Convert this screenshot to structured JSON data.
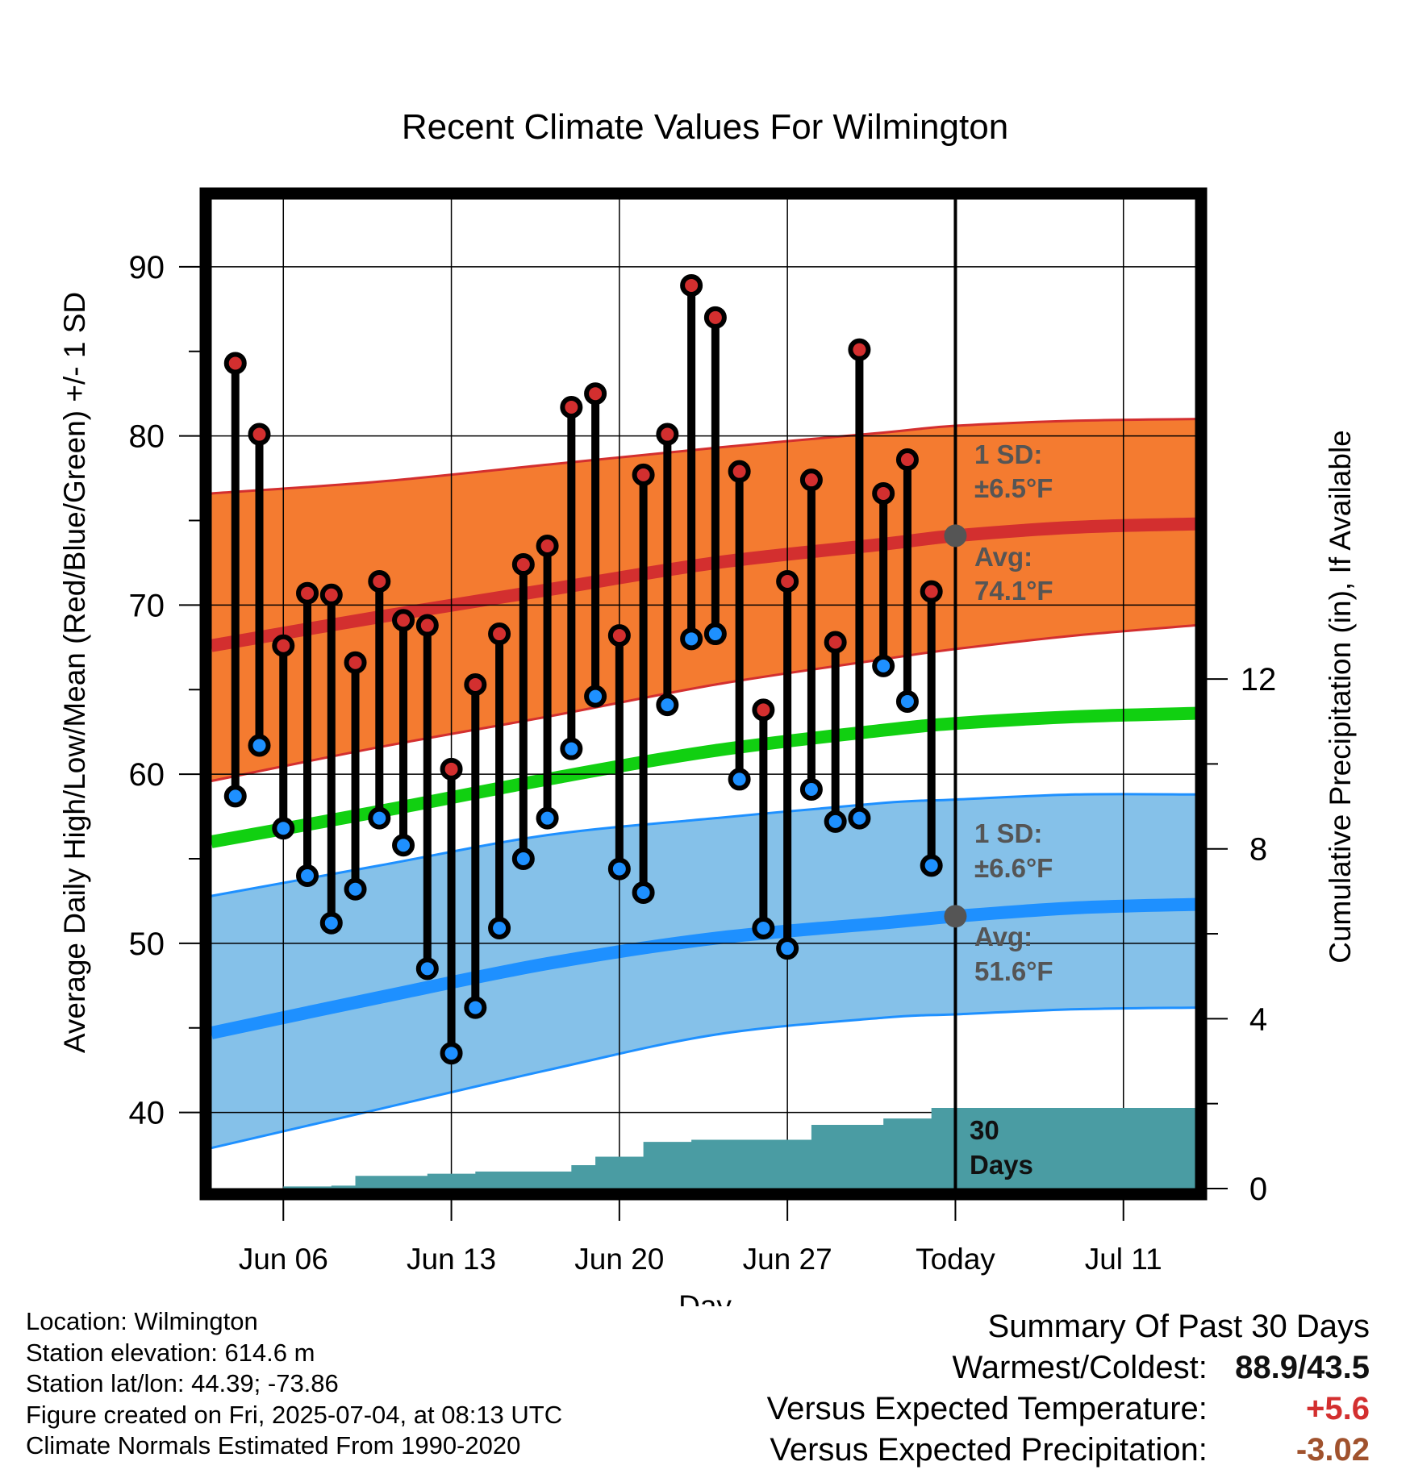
{
  "title": "Recent Climate Values For Wilmington",
  "y_left_label": "Average Daily High/Low/Mean (Red/Blue/Green) +/- 1 SD",
  "y_right_label": "Cumulative Precipitation (in), If Available",
  "x_label": "Day",
  "annotations": {
    "high_sd_line1": "1 SD:",
    "high_sd_line2": "±6.5°F",
    "high_avg_line1": "Avg:",
    "high_avg_line2": "74.1°F",
    "low_sd_line1": "1 SD:",
    "low_sd_line2": "±6.6°F",
    "low_avg_line1": "Avg:",
    "low_avg_line2": "51.6°F",
    "precip_line1": "30",
    "precip_line2": "Days"
  },
  "footer": {
    "location": "Location: Wilmington",
    "elevation": "Station elevation: 614.6 m",
    "latlon": "Station lat/lon: 44.39; -73.86",
    "created": "Figure created on Fri, 2025-07-04, at 08:13 UTC",
    "normals": "Climate Normals Estimated From 1990-2020"
  },
  "summary": {
    "heading": "Summary Of Past 30 Days",
    "warm_cold_label": "Warmest/Coldest:",
    "warm_cold_value": "88.9/43.5",
    "temp_label": "Versus Expected Temperature:",
    "temp_value": "+5.6",
    "precip_label": "Versus Expected Precipitation:",
    "precip_value": "-3.02"
  },
  "colors": {
    "high_band": "#f47b30",
    "high_line": "#d32f2f",
    "low_band": "#85c1e9",
    "low_line": "#1e90ff",
    "mean_line": "#11d011",
    "precip_fill": "#4a9ca3",
    "high_dot": "#d32f2f",
    "low_dot": "#1e90ff",
    "annotation_text": "#555555",
    "temp_value": "#d32f2f",
    "precip_value": "#a0522d"
  },
  "chart_data": {
    "type": "line",
    "title": "Recent Climate Values For Wilmington",
    "xlabel": "Day",
    "ylabel": "Average Daily High/Low/Mean (Red/Blue/Green) +/- 1 SD",
    "y2label": "Cumulative Precipitation (in), If Available",
    "xlim": [
      "2025-06-03",
      "2025-07-14"
    ],
    "ylim": [
      35.5,
      94
    ],
    "y2lim": [
      0,
      23.3
    ],
    "grid": true,
    "x_ticks": [
      {
        "date": "2025-06-06",
        "label": "Jun 06"
      },
      {
        "date": "2025-06-13",
        "label": "Jun 13"
      },
      {
        "date": "2025-06-20",
        "label": "Jun 20"
      },
      {
        "date": "2025-06-27",
        "label": "Jun 27"
      },
      {
        "date": "2025-07-04",
        "label": "Today"
      },
      {
        "date": "2025-07-11",
        "label": "Jul 11"
      }
    ],
    "y_ticks": [
      40,
      50,
      60,
      70,
      80,
      90
    ],
    "y2_ticks": [
      0,
      4,
      8,
      12
    ],
    "today": "2025-07-04",
    "daily": {
      "dates": [
        "2025-06-04",
        "2025-06-05",
        "2025-06-06",
        "2025-06-07",
        "2025-06-08",
        "2025-06-09",
        "2025-06-10",
        "2025-06-11",
        "2025-06-12",
        "2025-06-13",
        "2025-06-14",
        "2025-06-15",
        "2025-06-16",
        "2025-06-17",
        "2025-06-18",
        "2025-06-19",
        "2025-06-20",
        "2025-06-21",
        "2025-06-22",
        "2025-06-23",
        "2025-06-24",
        "2025-06-25",
        "2025-06-26",
        "2025-06-27",
        "2025-06-28",
        "2025-06-29",
        "2025-06-30",
        "2025-07-01",
        "2025-07-02",
        "2025-07-03"
      ],
      "highs": [
        84.3,
        80.1,
        67.6,
        70.7,
        70.6,
        66.6,
        71.4,
        69.1,
        68.8,
        60.3,
        65.3,
        68.3,
        72.4,
        73.5,
        81.7,
        82.5,
        68.2,
        77.7,
        80.1,
        88.9,
        87.0,
        77.9,
        63.8,
        71.4,
        77.4,
        67.8,
        85.1,
        76.6,
        78.6,
        70.8
      ],
      "lows": [
        58.7,
        61.7,
        56.8,
        54.0,
        51.2,
        53.2,
        57.4,
        55.8,
        48.5,
        43.5,
        46.2,
        50.9,
        55.0,
        57.4,
        61.5,
        64.6,
        54.4,
        53.0,
        64.1,
        68.0,
        68.3,
        59.7,
        50.9,
        49.7,
        59.1,
        57.2,
        57.4,
        66.4,
        64.3,
        54.6
      ]
    },
    "normals": {
      "dates": [
        "2025-06-03",
        "2025-06-10",
        "2025-06-17",
        "2025-06-24",
        "2025-07-01",
        "2025-07-04",
        "2025-07-09",
        "2025-07-14"
      ],
      "high_mean": [
        67.6,
        69.3,
        70.9,
        72.5,
        73.6,
        74.1,
        74.6,
        74.8
      ],
      "high_upper": [
        76.6,
        77.3,
        78.3,
        79.3,
        80.2,
        80.6,
        80.9,
        81.0
      ],
      "high_lower": [
        59.6,
        61.6,
        63.4,
        65.3,
        66.8,
        67.4,
        68.2,
        68.8
      ],
      "mean": [
        56.0,
        57.8,
        59.7,
        61.4,
        62.6,
        63.0,
        63.4,
        63.6
      ],
      "low_mean": [
        44.7,
        46.8,
        48.8,
        50.3,
        51.2,
        51.6,
        52.1,
        52.3
      ],
      "low_upper": [
        52.8,
        54.6,
        56.4,
        57.4,
        58.3,
        58.5,
        58.8,
        58.8
      ],
      "low_lower": [
        37.9,
        40.2,
        42.5,
        44.6,
        45.6,
        45.8,
        46.1,
        46.2
      ]
    },
    "precipitation": {
      "dates": [
        "2025-06-06",
        "2025-06-08",
        "2025-06-09",
        "2025-06-10",
        "2025-06-12",
        "2025-06-14",
        "2025-06-17",
        "2025-06-18",
        "2025-06-19",
        "2025-06-20",
        "2025-06-21",
        "2025-06-22",
        "2025-06-23",
        "2025-06-24",
        "2025-06-27",
        "2025-06-28",
        "2025-06-30",
        "2025-07-01",
        "2025-07-02",
        "2025-07-03",
        "2025-07-04",
        "2025-07-14"
      ],
      "cumulative": [
        0.05,
        0.07,
        0.3,
        0.3,
        0.35,
        0.4,
        0.4,
        0.55,
        0.75,
        0.75,
        1.1,
        1.1,
        1.15,
        1.15,
        1.15,
        1.5,
        1.5,
        1.65,
        1.65,
        1.9,
        1.9,
        1.9
      ]
    }
  }
}
